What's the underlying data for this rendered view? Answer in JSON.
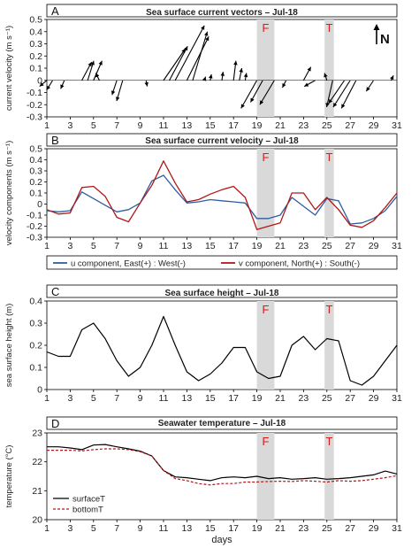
{
  "colors": {
    "u": "#2f5da0",
    "v": "#b01818",
    "line": "#000000",
    "bottom": "#b01818",
    "band": "#d9d9d9",
    "marker": "#d81b1b"
  },
  "markers": [
    {
      "label": "F",
      "day_start": 19,
      "day_end": 20.5,
      "label_day": 19.75
    },
    {
      "label": "T",
      "day_start": 24.8,
      "day_end": 25.6,
      "label_day": 25.2
    }
  ],
  "north_label": "N",
  "x_axis_label": "days",
  "panels": [
    {
      "letter": "A",
      "chart_data": {
        "type": "vector",
        "title": "Sea surface current vectors – Jul-18",
        "ylabel": "current velocity (m s⁻¹)",
        "xlim": [
          1,
          31
        ],
        "ylim": [
          -0.3,
          0.5
        ],
        "yticks": [
          -0.3,
          -0.2,
          -0.1,
          0,
          0.1,
          0.2,
          0.3,
          0.4,
          0.5
        ],
        "yticklabels": [
          "-0.3",
          "-0.2",
          "-0.1",
          "0",
          "0.1",
          "0.2",
          "0.3",
          "0.4",
          "0.5"
        ],
        "xticks": [
          1,
          3,
          5,
          7,
          9,
          11,
          13,
          15,
          17,
          19,
          21,
          23,
          25,
          27,
          29,
          31
        ],
        "vectors": [
          {
            "day": 1,
            "u": -0.06,
            "v": -0.05
          },
          {
            "day": 1.5,
            "u": -0.05,
            "v": -0.08
          },
          {
            "day": 2.5,
            "u": -0.03,
            "v": -0.07
          },
          {
            "day": 4,
            "u": 0.08,
            "v": 0.15
          },
          {
            "day": 4.5,
            "u": 0.05,
            "v": 0.16
          },
          {
            "day": 5,
            "u": 0.07,
            "v": 0.16
          },
          {
            "day": 5.5,
            "u": -0.03,
            "v": 0.06
          },
          {
            "day": 7,
            "u": -0.04,
            "v": -0.12
          },
          {
            "day": 7.5,
            "u": -0.05,
            "v": -0.17
          },
          {
            "day": 9.5,
            "u": 0.01,
            "v": -0.05
          },
          {
            "day": 11,
            "u": 0.18,
            "v": 0.26
          },
          {
            "day": 11.5,
            "u": 0.15,
            "v": 0.28
          },
          {
            "day": 12,
            "u": 0.24,
            "v": 0.45
          },
          {
            "day": 13,
            "u": 0.18,
            "v": 0.36
          },
          {
            "day": 13.5,
            "u": 0.12,
            "v": 0.4
          },
          {
            "day": 14.5,
            "u": 0.01,
            "v": 0.03
          },
          {
            "day": 15,
            "u": 0.01,
            "v": 0.05
          },
          {
            "day": 16,
            "u": 0.01,
            "v": 0.07
          },
          {
            "day": 17,
            "u": 0.02,
            "v": 0.16
          },
          {
            "day": 17.5,
            "u": 0.02,
            "v": 0.1
          },
          {
            "day": 18,
            "u": 0.01,
            "v": 0.06
          },
          {
            "day": 19,
            "u": -0.13,
            "v": -0.23
          },
          {
            "day": 19.5,
            "u": -0.1,
            "v": -0.18
          },
          {
            "day": 20.5,
            "u": -0.12,
            "v": -0.2
          },
          {
            "day": 21.5,
            "u": -0.03,
            "v": -0.06
          },
          {
            "day": 23,
            "u": 0.06,
            "v": 0.11
          },
          {
            "day": 24,
            "u": -0.09,
            "v": -0.05
          },
          {
            "day": 25,
            "u": -0.02,
            "v": 0.06
          },
          {
            "day": 25.5,
            "u": -0.05,
            "v": -0.22
          },
          {
            "day": 26.5,
            "u": -0.13,
            "v": -0.19
          },
          {
            "day": 27,
            "u": -0.14,
            "v": -0.22
          },
          {
            "day": 27.5,
            "u": -0.12,
            "v": -0.23
          },
          {
            "day": 29,
            "u": -0.06,
            "v": -0.09
          },
          {
            "day": 30.5,
            "u": 0.02,
            "v": 0.04
          }
        ]
      }
    },
    {
      "letter": "B",
      "chart_data": {
        "type": "line",
        "title": "Sea surface current velocity – Jul-18",
        "ylabel": "velocity components (m s⁻¹)",
        "xlim": [
          1,
          31
        ],
        "ylim": [
          -0.3,
          0.5
        ],
        "yticks": [
          -0.3,
          -0.2,
          -0.1,
          0,
          0.1,
          0.2,
          0.3,
          0.4,
          0.5
        ],
        "yticklabels": [
          "-0.3",
          "-0.2",
          "-0.1",
          "0",
          "0.1",
          "0.2",
          "0.3",
          "0.4",
          "0.5"
        ],
        "xticks": [
          1,
          3,
          5,
          7,
          9,
          11,
          13,
          15,
          17,
          19,
          21,
          23,
          25,
          27,
          29,
          31
        ],
        "legend_position": "below",
        "series": [
          {
            "name": "u component, East(+) : West(-)",
            "x": [
              1,
              2,
              3,
              4,
              5,
              6,
              7,
              8,
              9,
              10,
              11,
              12,
              13,
              14,
              15,
              16,
              17,
              18,
              19,
              20,
              21,
              22,
              23,
              24,
              25,
              26,
              27,
              28,
              29,
              30,
              31
            ],
            "values": [
              -0.06,
              -0.07,
              -0.06,
              0.11,
              0.05,
              -0.01,
              -0.07,
              -0.05,
              0.01,
              0.21,
              0.26,
              0.13,
              0.01,
              0.02,
              0.04,
              0.03,
              0.02,
              0.01,
              -0.13,
              -0.13,
              -0.1,
              0.06,
              -0.02,
              -0.1,
              0.05,
              0.03,
              -0.18,
              -0.17,
              -0.13,
              -0.06,
              0.07
            ]
          },
          {
            "name": "v component, North(+) : South(-)",
            "x": [
              1,
              2,
              3,
              4,
              5,
              6,
              7,
              8,
              9,
              10,
              11,
              12,
              13,
              14,
              15,
              16,
              17,
              18,
              19,
              20,
              21,
              22,
              23,
              24,
              25,
              26,
              27,
              28,
              29,
              30,
              31
            ],
            "values": [
              -0.05,
              -0.09,
              -0.08,
              0.15,
              0.16,
              0.07,
              -0.12,
              -0.16,
              0.01,
              0.17,
              0.39,
              0.19,
              0.02,
              0.04,
              0.09,
              0.13,
              0.16,
              0.06,
              -0.23,
              -0.2,
              -0.17,
              0.1,
              0.1,
              -0.05,
              0.06,
              -0.05,
              -0.19,
              -0.21,
              -0.15,
              -0.03,
              0.1
            ]
          }
        ]
      }
    },
    {
      "letter": "C",
      "chart_data": {
        "type": "line",
        "title": "Sea surface height – Jul-18",
        "ylabel": "sea surface height (m)",
        "xlim": [
          1,
          31
        ],
        "ylim": [
          0,
          0.4
        ],
        "yticks": [
          0,
          0.1,
          0.2,
          0.3,
          0.4
        ],
        "yticklabels": [
          "0",
          "0.1",
          "0.2",
          "0.3",
          "0.4"
        ],
        "xticks": [
          1,
          3,
          5,
          7,
          9,
          11,
          13,
          15,
          17,
          19,
          21,
          23,
          25,
          27,
          29,
          31
        ],
        "series": [
          {
            "x": [
              1,
              2,
              3,
              4,
              5,
              6,
              7,
              8,
              9,
              10,
              11,
              12,
              13,
              14,
              15,
              16,
              17,
              18,
              19,
              20,
              21,
              22,
              23,
              24,
              25,
              26,
              27,
              28,
              29,
              30,
              31
            ],
            "values": [
              0.17,
              0.15,
              0.15,
              0.27,
              0.3,
              0.23,
              0.13,
              0.06,
              0.1,
              0.2,
              0.33,
              0.2,
              0.08,
              0.04,
              0.07,
              0.12,
              0.19,
              0.19,
              0.08,
              0.05,
              0.06,
              0.2,
              0.24,
              0.18,
              0.23,
              0.22,
              0.04,
              0.02,
              0.06,
              0.13,
              0.2
            ]
          }
        ]
      }
    },
    {
      "letter": "D",
      "chart_data": {
        "type": "line",
        "title": "Seawater temperature – Jul-18",
        "ylabel": "temperature (°C)",
        "xlabel": "days",
        "xlim": [
          1,
          31
        ],
        "ylim": [
          20,
          23
        ],
        "yticks": [
          20,
          21,
          22,
          23
        ],
        "yticklabels": [
          "20",
          "21",
          "22",
          "23"
        ],
        "xticks": [
          1,
          3,
          5,
          7,
          9,
          11,
          13,
          15,
          17,
          19,
          21,
          23,
          25,
          27,
          29,
          31
        ],
        "legend_position": "bottom-left",
        "series": [
          {
            "name": "surfaceT",
            "style": "solid",
            "x": [
              1,
              2,
              3,
              4,
              5,
              6,
              7,
              8,
              9,
              10,
              11,
              12,
              13,
              14,
              15,
              16,
              17,
              18,
              19,
              20,
              21,
              22,
              23,
              24,
              25,
              26,
              27,
              28,
              29,
              30,
              31
            ],
            "values": [
              22.52,
              22.52,
              22.48,
              22.42,
              22.58,
              22.6,
              22.52,
              22.45,
              22.37,
              22.2,
              21.7,
              21.48,
              21.45,
              21.4,
              21.35,
              21.45,
              21.48,
              21.45,
              21.5,
              21.42,
              21.45,
              21.4,
              21.42,
              21.45,
              21.4,
              21.42,
              21.45,
              21.5,
              21.55,
              21.68,
              21.58
            ]
          },
          {
            "name": "bottomT",
            "style": "dashed",
            "x": [
              1,
              2,
              3,
              4,
              5,
              6,
              7,
              8,
              9,
              10,
              11,
              12,
              13,
              14,
              15,
              16,
              17,
              18,
              19,
              20,
              21,
              22,
              23,
              24,
              25,
              26,
              27,
              28,
              29,
              30,
              31
            ],
            "values": [
              22.4,
              22.4,
              22.4,
              22.38,
              22.42,
              22.45,
              22.45,
              22.42,
              22.35,
              22.2,
              21.7,
              21.42,
              21.35,
              21.25,
              21.2,
              21.25,
              21.25,
              21.3,
              21.3,
              21.32,
              21.33,
              21.32,
              21.35,
              21.33,
              21.3,
              21.35,
              21.33,
              21.35,
              21.4,
              21.45,
              21.52
            ]
          }
        ]
      }
    }
  ]
}
